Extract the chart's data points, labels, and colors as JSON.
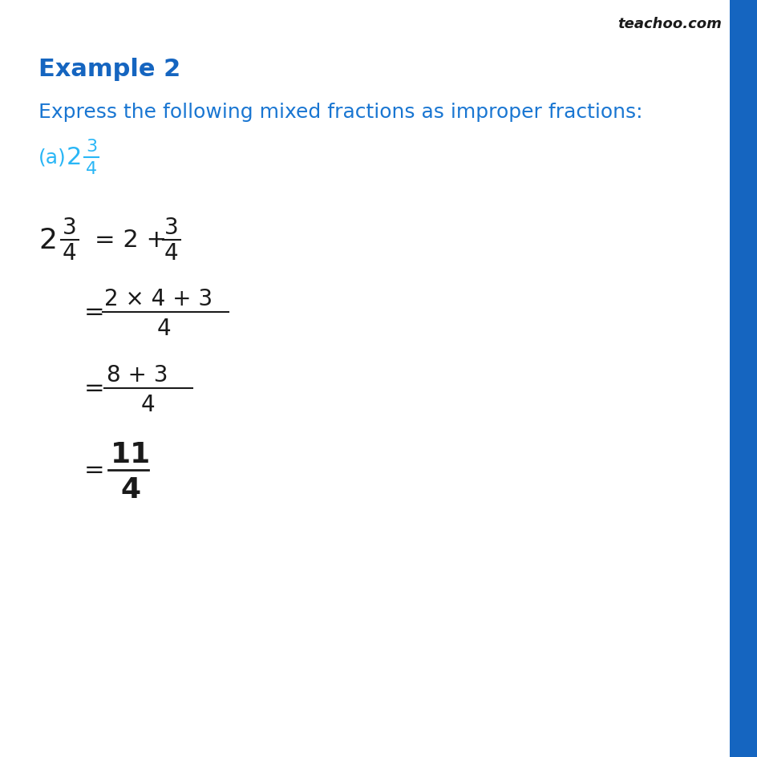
{
  "title": "Example 2",
  "subtitle": "Express the following mixed fractions as improper fractions:",
  "part_label": "(a)",
  "bg_color": "#ffffff",
  "title_color": "#1565C0",
  "subtitle_color": "#1976D2",
  "part_color": "#29B6F6",
  "black_color": "#1a1a1a",
  "sidebar_color": "#1565C0",
  "teachoo_color": "#1a1a1a",
  "figsize": [
    9.45,
    9.45
  ],
  "dpi": 100
}
